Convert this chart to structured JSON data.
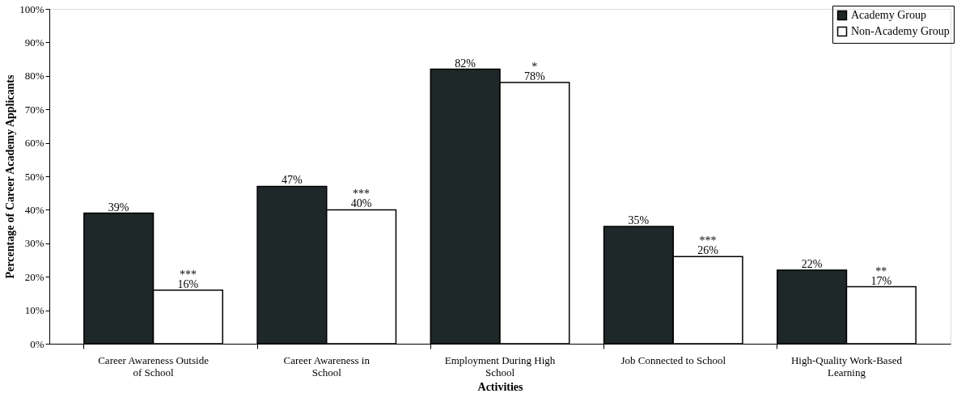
{
  "chart_data": {
    "type": "bar",
    "xlabel": "Activities",
    "ylabel": "Percentage of Career Academy Applicants",
    "categories": [
      "Career Awareness Outside of School",
      "Career Awareness in School",
      "Employment During High School",
      "Job Connected to School",
      "High-Quality Work-Based Learning"
    ],
    "series": [
      {
        "name": "Academy Group",
        "color": "#1f2828",
        "values": [
          39,
          47,
          82,
          35,
          22
        ],
        "value_labels": [
          "39%",
          "47%",
          "82%",
          "35%",
          "22%"
        ]
      },
      {
        "name": "Non-Academy Group",
        "color": "#ffffff",
        "values": [
          16,
          40,
          78,
          26,
          17
        ],
        "value_labels": [
          "16%",
          "40%",
          "78%",
          "26%",
          "17%"
        ]
      }
    ],
    "ylim": [
      0,
      100
    ],
    "yticks": [
      {
        "value": 0,
        "label": "0%"
      },
      {
        "value": 10,
        "label": "10%"
      },
      {
        "value": 20,
        "label": "20%"
      },
      {
        "value": 30,
        "label": "30%"
      },
      {
        "value": 40,
        "label": "40%"
      },
      {
        "value": 50,
        "label": "50%"
      },
      {
        "value": 60,
        "label": "60%"
      },
      {
        "value": 70,
        "label": "70%"
      },
      {
        "value": 80,
        "label": "80%"
      },
      {
        "value": 90,
        "label": "90%"
      },
      {
        "value": 100,
        "label": "100%"
      }
    ],
    "annotations": [
      {
        "text": "***",
        "x": "Career Awareness Outside of School",
        "y": 16
      },
      {
        "text": "***",
        "x": "Career Awareness in School",
        "y": 40
      },
      {
        "text": "*",
        "x": "Employment During High School",
        "y": 78
      },
      {
        "text": "***",
        "x": "Job Connected to School",
        "y": 26
      },
      {
        "text": "**",
        "x": "High-Quality Work-Based Learning",
        "y": 17
      }
    ],
    "grid": false,
    "legend": "top right"
  }
}
